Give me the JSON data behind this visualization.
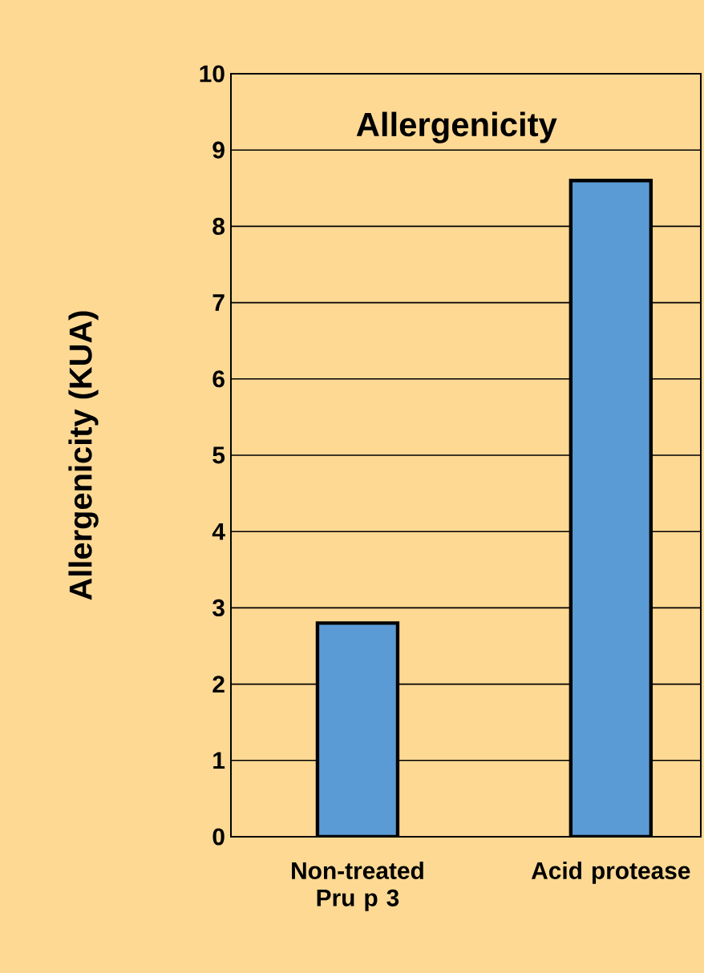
{
  "chart_data": {
    "type": "bar",
    "title": "Allergenicity",
    "ylabel": "Allergenicity (KUA)",
    "categories": [
      "Non-treated Pru p 3",
      "Acid protease"
    ],
    "values": [
      2.8,
      8.6
    ],
    "color": "#5b9bd5",
    "ylim": [
      0,
      10
    ],
    "yticks": [
      0,
      1,
      2,
      3,
      4,
      5,
      6,
      7,
      8,
      9,
      10
    ],
    "grid": "y"
  }
}
